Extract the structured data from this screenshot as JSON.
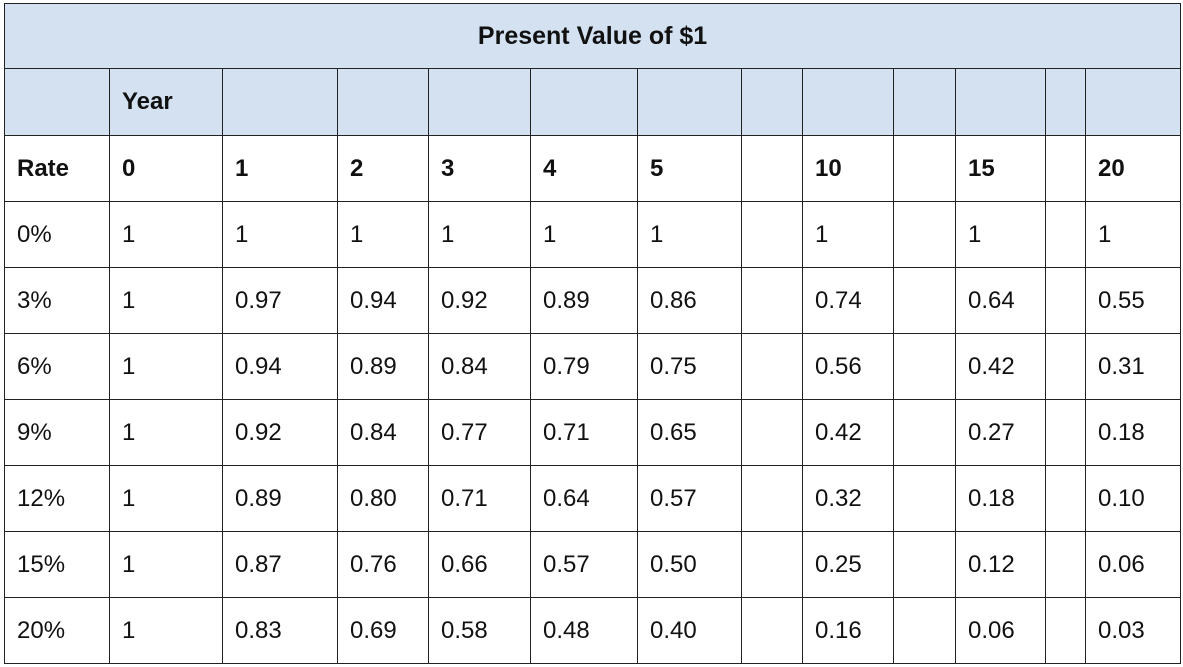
{
  "title": "Present Value of $1",
  "year_label": "Year",
  "rate_label": "Rate",
  "years": [
    "0",
    "1",
    "2",
    "3",
    "4",
    "5",
    "",
    "10",
    "",
    "15",
    "",
    "20"
  ],
  "rows": [
    {
      "rate": "0%",
      "values": [
        "1",
        "1",
        "1",
        "1",
        "1",
        "1",
        "",
        "1",
        "",
        "1",
        "",
        "1"
      ]
    },
    {
      "rate": "3%",
      "values": [
        "1",
        "0.97",
        "0.94",
        "0.92",
        "0.89",
        "0.86",
        "",
        "0.74",
        "",
        "0.64",
        "",
        "0.55"
      ]
    },
    {
      "rate": "6%",
      "values": [
        "1",
        "0.94",
        "0.89",
        "0.84",
        "0.79",
        "0.75",
        "",
        "0.56",
        "",
        "0.42",
        "",
        "0.31"
      ]
    },
    {
      "rate": "9%",
      "values": [
        "1",
        "0.92",
        "0.84",
        "0.77",
        "0.71",
        "0.65",
        "",
        "0.42",
        "",
        "0.27",
        "",
        "0.18"
      ]
    },
    {
      "rate": "12%",
      "values": [
        "1",
        "0.89",
        "0.80",
        "0.71",
        "0.64",
        "0.57",
        "",
        "0.32",
        "",
        "0.18",
        "",
        "0.10"
      ]
    },
    {
      "rate": "15%",
      "values": [
        "1",
        "0.87",
        "0.76",
        "0.66",
        "0.57",
        "0.50",
        "",
        "0.25",
        "",
        "0.12",
        "",
        "0.06"
      ]
    },
    {
      "rate": "20%",
      "values": [
        "1",
        "0.83",
        "0.69",
        "0.58",
        "0.48",
        "0.40",
        "",
        "0.16",
        "",
        "0.06",
        "",
        "0.03"
      ]
    }
  ],
  "colors": {
    "header_fill": "#d3e1f1",
    "border": "#222222"
  }
}
